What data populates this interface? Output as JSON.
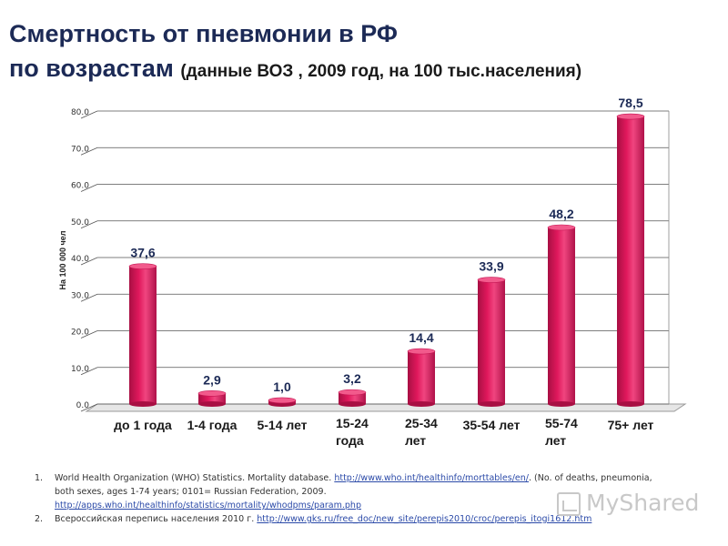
{
  "title_line1": "Смертность от пневмонии в РФ",
  "title_line2": "по возрастам",
  "title_sub": "(данные ВОЗ , 2009 год, на 100 тыс.населения)",
  "chart_data": {
    "type": "bar",
    "ylabel": "На 100 000 чел",
    "ylim": [
      0,
      80
    ],
    "yticks": [
      "0.0",
      "10.0",
      "20.0",
      "30.0",
      "40.0",
      "50.0",
      "60.0",
      "70.0",
      "80.0"
    ],
    "categories": [
      [
        "до 1 года"
      ],
      [
        "1-4 года"
      ],
      [
        "5-14 лет"
      ],
      [
        "15-24",
        "года"
      ],
      [
        "25-34",
        "лет"
      ],
      [
        "35-54 лет"
      ],
      [
        "55-74",
        "лет"
      ],
      [
        "75+ лет"
      ]
    ],
    "values": [
      37.6,
      2.9,
      1.0,
      3.2,
      14.4,
      33.9,
      48.2,
      78.5
    ],
    "value_labels": [
      "37,6",
      "2,9",
      "1,0",
      "3,2",
      "14,4",
      "33,9",
      "48,2",
      "78,5"
    ],
    "bar_color": "#e0185c",
    "grid": true
  },
  "references": [
    {
      "num": "1.",
      "text_before": "World Health Organization (WHO) Statistics. Mortality database. ",
      "link1": "http://www.who.int/healthinfo/morttables/en/",
      "text_after": ". (No. of deaths, pneumonia, both sexes, ages 1-74 years; 0101= Russian Federation, 2009.",
      "link2": "http://apps.who.int/healthinfo/statistics/mortality/whodpms/param.php"
    },
    {
      "num": "2.",
      "text_before": "Всероссийская перепись населения 2010 г. ",
      "link1": "http://www.gks.ru/free_doc/new_site/perepis2010/croc/perepis_itogi1612.htm"
    }
  ],
  "watermark": "MyShared"
}
